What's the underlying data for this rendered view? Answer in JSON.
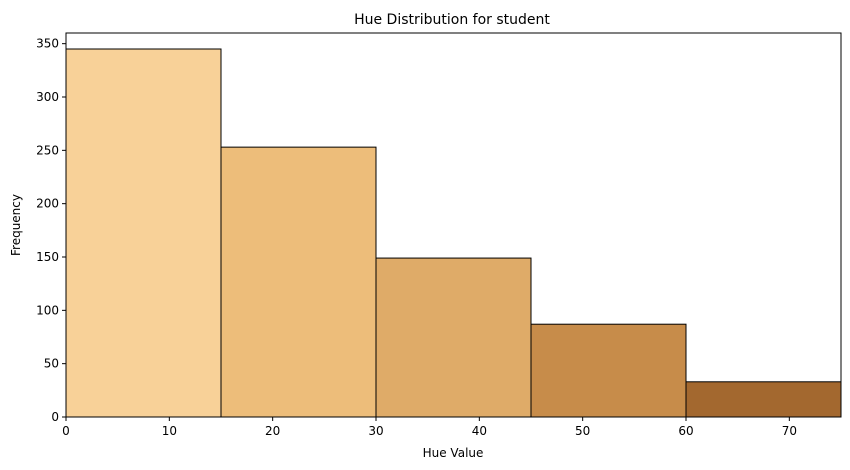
{
  "chart_data": {
    "type": "bar",
    "title": "Hue Distribution for student",
    "xlabel": "Hue Value",
    "ylabel": "Frequency",
    "bins": [
      {
        "x0": 0,
        "x1": 15,
        "value": 345,
        "color": "#f8d198"
      },
      {
        "x0": 15,
        "x1": 30,
        "value": 253,
        "color": "#edbd7a"
      },
      {
        "x0": 30,
        "x1": 45,
        "value": 149,
        "color": "#dfab68"
      },
      {
        "x0": 45,
        "x1": 60,
        "value": 87,
        "color": "#c78c4a"
      },
      {
        "x0": 60,
        "x1": 75,
        "value": 33,
        "color": "#a3682f"
      }
    ],
    "xlim": [
      0,
      75
    ],
    "ylim": [
      0,
      360
    ],
    "xticks": [
      0,
      10,
      20,
      30,
      40,
      50,
      60,
      70
    ],
    "yticks": [
      0,
      50,
      100,
      150,
      200,
      250,
      300,
      350
    ],
    "grid": false,
    "edge_color": "#000000"
  }
}
